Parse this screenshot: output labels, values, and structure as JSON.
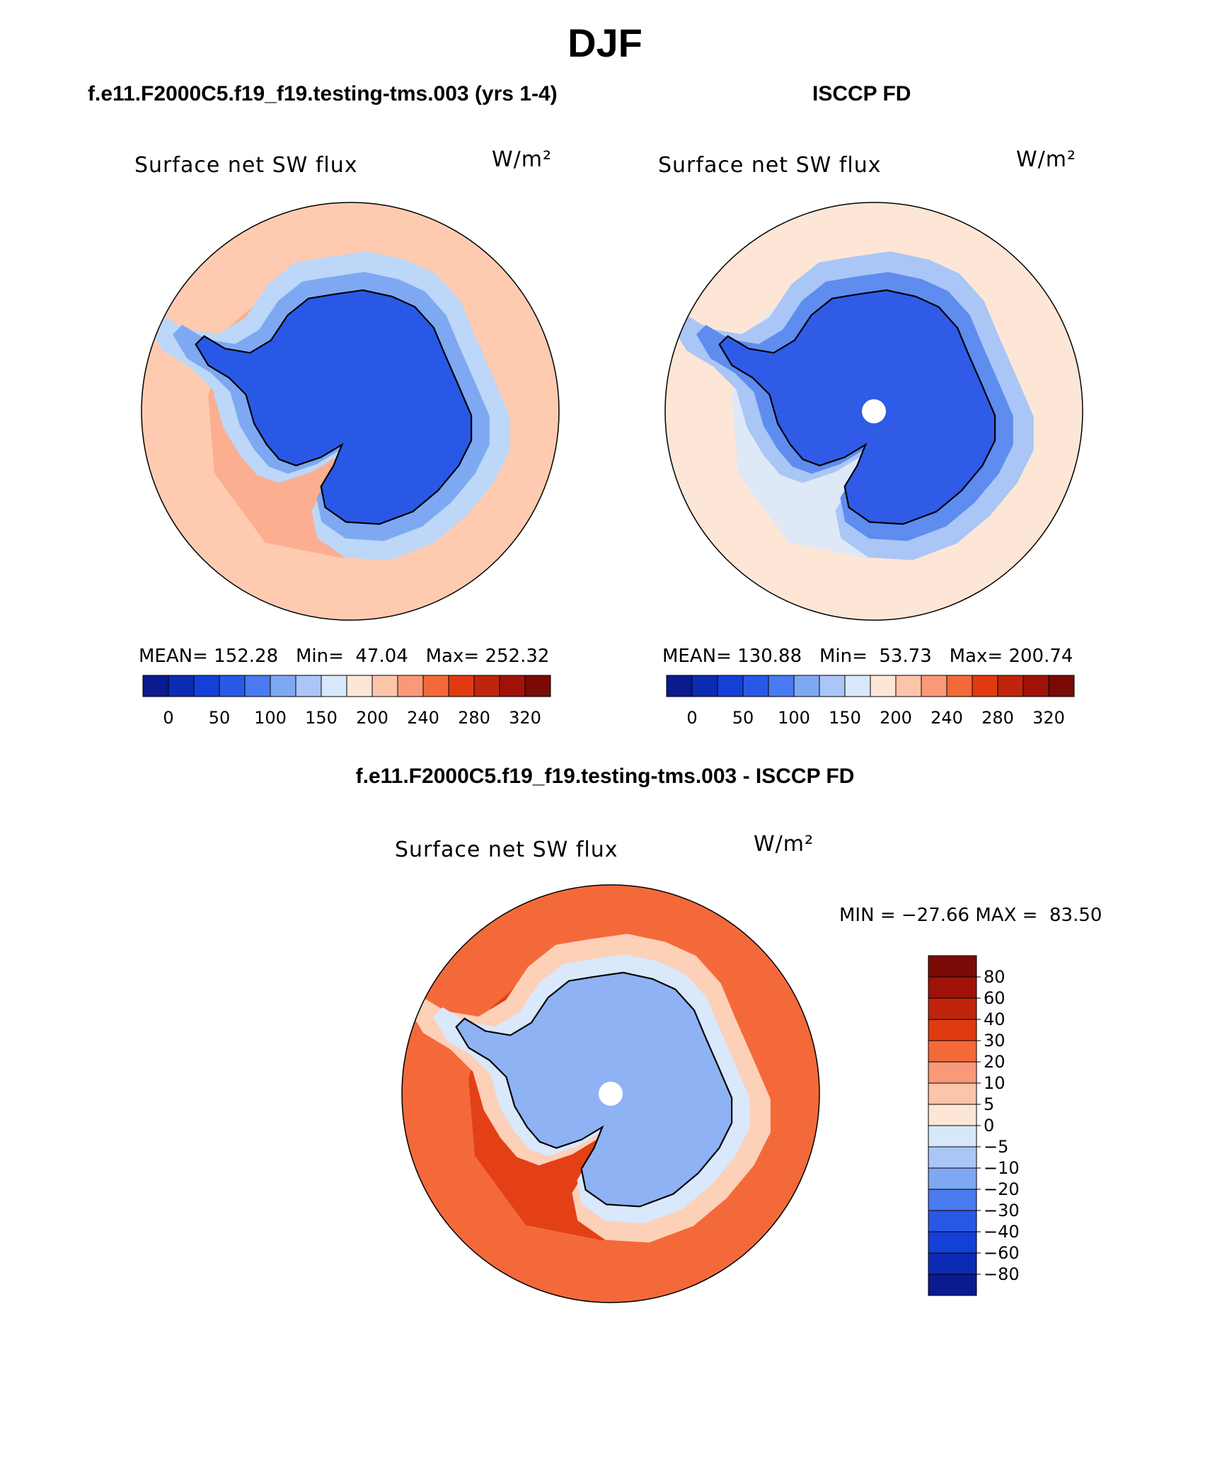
{
  "page": {
    "title": "DJF",
    "diff_title": "f.e11.F2000C5.f19_f19.testing-tms.003 - ISCCP FD"
  },
  "chart_data": [
    {
      "type": "heatmap",
      "projection": "polar-stereographic-south",
      "title": "f.e11.F2000C5.f19_f19.testing-tms.003 (yrs 1-4)",
      "variable": "Surface net SW flux",
      "units": "W/m²",
      "stats": {
        "mean_label": "MEAN=",
        "mean": "152.28",
        "min_label": "Min=",
        "min": "47.04",
        "max_label": "Max=",
        "max": "252.32"
      },
      "colorbar": {
        "orientation": "horizontal",
        "levels": [
          0,
          25,
          50,
          75,
          100,
          125,
          150,
          175,
          200,
          220,
          240,
          260,
          280,
          300,
          320
        ],
        "tick_labels": [
          "0",
          "50",
          "100",
          "150",
          "200",
          "240",
          "280",
          "320"
        ]
      },
      "pattern": {
        "ocean": "#ffcbb0",
        "ocean_band": "#fca98b",
        "coast_band_1": "#bcd7f7",
        "coast_band_2": "#7ea8f2",
        "continent": "#2a58e6",
        "pole_hole": false
      }
    },
    {
      "type": "heatmap",
      "projection": "polar-stereographic-south",
      "title": "ISCCP FD",
      "variable": "Surface net SW flux",
      "units": "W/m²",
      "stats": {
        "mean_label": "MEAN=",
        "mean": "130.88",
        "min_label": "Min=",
        "min": "53.73",
        "max_label": "Max=",
        "max": "200.74"
      },
      "colorbar": {
        "orientation": "horizontal",
        "levels": [
          0,
          25,
          50,
          75,
          100,
          125,
          150,
          175,
          200,
          220,
          240,
          260,
          280,
          300,
          320
        ],
        "tick_labels": [
          "0",
          "50",
          "100",
          "150",
          "200",
          "240",
          "280",
          "320"
        ]
      },
      "pattern": {
        "ocean": "#fde6d6",
        "ocean_band": "#d8e8fb",
        "coast_band_1": "#a9c6f6",
        "coast_band_2": "#5e8cef",
        "continent": "#2f5be6",
        "pole_hole": true
      }
    },
    {
      "type": "heatmap",
      "projection": "polar-stereographic-south",
      "title": "f.e11.F2000C5.f19_f19.testing-tms.003 - ISCCP FD",
      "variable": "Surface net SW flux",
      "units": "W/m²",
      "stats": {
        "min_label": "MIN =",
        "min": "−27.66",
        "max_label": "MAX =",
        "max": "83.50"
      },
      "colorbar": {
        "orientation": "vertical",
        "levels": [
          -80,
          -60,
          -40,
          -30,
          -20,
          -10,
          -5,
          0,
          5,
          10,
          20,
          30,
          40,
          60,
          80
        ],
        "tick_labels": [
          "80",
          "60",
          "40",
          "30",
          "20",
          "10",
          "5",
          "0",
          "−5",
          "−10",
          "−20",
          "−30",
          "−40",
          "−60",
          "−80"
        ]
      },
      "pattern": {
        "ocean": "#f4693a",
        "ocean_band": "#e03a10",
        "coast_band_1": "#fdd0b8",
        "coast_band_2": "#d9e8fb",
        "continent": "#8fb2f4",
        "pole_hole": true
      }
    }
  ],
  "colors": {
    "colormap": [
      "#0a1a8f",
      "#0c2bb3",
      "#1440d8",
      "#2a58e6",
      "#4a7af0",
      "#7ea8f2",
      "#a9c6f6",
      "#d8e8fb",
      "#fde6d6",
      "#fcc4a8",
      "#f9997a",
      "#f4693a",
      "#e03a10",
      "#c1240c",
      "#a01208",
      "#7a0a05"
    ],
    "coastline": "#000000",
    "outline": "#000000"
  }
}
